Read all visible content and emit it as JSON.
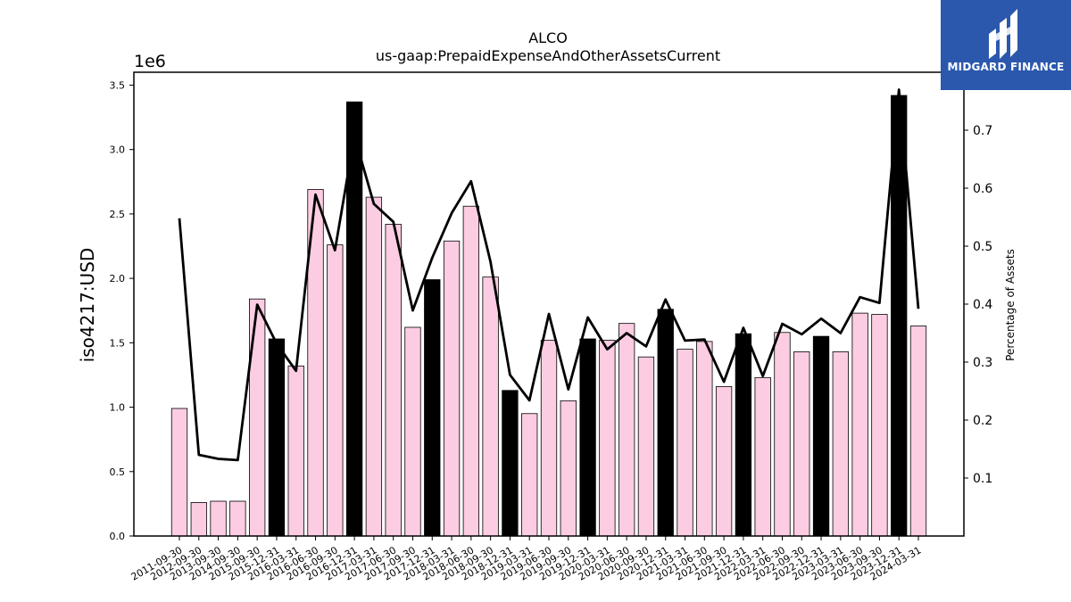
{
  "chart_data": {
    "type": "bar",
    "title": "ALCO",
    "subtitle": "us-gaap:PrepaidExpenseAndOtherAssetsCurrent",
    "ylabel": "iso4217:USD",
    "y_offset_text": "1e6",
    "y2label": "Percentage of Assets",
    "ylim": [
      0,
      3.6
    ],
    "y2lim": [
      0,
      0.8
    ],
    "yticks": [
      "0.0",
      "0.5",
      "1.0",
      "1.5",
      "2.0",
      "2.5",
      "3.0",
      "3.5"
    ],
    "y2ticks": [
      "0.1",
      "0.2",
      "0.3",
      "0.4",
      "0.5",
      "0.6",
      "0.7"
    ],
    "categories": [
      "2011-09-30",
      "2012-09-30",
      "2013-09-30",
      "2014-09-30",
      "2015-09-30",
      "2015-12-31",
      "2016-03-31",
      "2016-06-30",
      "2016-09-30",
      "2016-12-31",
      "2017-03-31",
      "2017-06-30",
      "2017-09-30",
      "2017-12-31",
      "2018-03-31",
      "2018-06-30",
      "2018-09-30",
      "2018-12-31",
      "2019-03-31",
      "2019-06-30",
      "2019-09-30",
      "2019-12-31",
      "2020-03-31",
      "2020-06-30",
      "2020-09-30",
      "2020-12-31",
      "2021-03-31",
      "2021-06-30",
      "2021-09-30",
      "2021-12-31",
      "2022-03-31",
      "2022-06-30",
      "2022-09-30",
      "2022-12-31",
      "2023-03-31",
      "2023-06-30",
      "2023-09-30",
      "2023-12-31",
      "2024-03-31"
    ],
    "series": [
      {
        "kind": "bar",
        "values": [
          0.99,
          0.26,
          0.27,
          0.27,
          1.84,
          1.53,
          1.32,
          2.69,
          2.26,
          3.37,
          2.63,
          2.42,
          1.62,
          1.99,
          2.29,
          2.56,
          2.01,
          1.13,
          0.95,
          1.52,
          1.05,
          1.53,
          1.52,
          1.65,
          1.39,
          1.76,
          1.45,
          1.51,
          1.16,
          1.57,
          1.23,
          1.58,
          1.43,
          1.55,
          1.43,
          1.73,
          1.72,
          3.42,
          1.63
        ],
        "highlight": [
          false,
          false,
          false,
          false,
          false,
          true,
          false,
          false,
          false,
          true,
          false,
          false,
          false,
          true,
          false,
          false,
          false,
          true,
          false,
          false,
          false,
          true,
          false,
          false,
          false,
          true,
          false,
          false,
          false,
          true,
          false,
          false,
          false,
          true,
          false,
          false,
          false,
          true,
          false
        ]
      },
      {
        "kind": "line",
        "axis": "right",
        "values": [
          0.548,
          0.14,
          0.133,
          0.131,
          0.399,
          0.332,
          0.285,
          0.589,
          0.493,
          0.69,
          0.573,
          0.542,
          0.389,
          0.48,
          0.557,
          0.612,
          0.473,
          0.278,
          0.234,
          0.383,
          0.253,
          0.377,
          0.322,
          0.35,
          0.327,
          0.408,
          0.337,
          0.339,
          0.266,
          0.359,
          0.276,
          0.366,
          0.348,
          0.375,
          0.35,
          0.412,
          0.402,
          0.77,
          0.392
        ]
      }
    ],
    "colors": {
      "bar": "#fccde2",
      "highlight": "#000000",
      "line": "#000000"
    },
    "grid": false,
    "legend": "none"
  },
  "logo": {
    "text": "MIDGARD FINANCE",
    "icon": "midgard-logo-icon",
    "bg": "#2b58ad"
  }
}
